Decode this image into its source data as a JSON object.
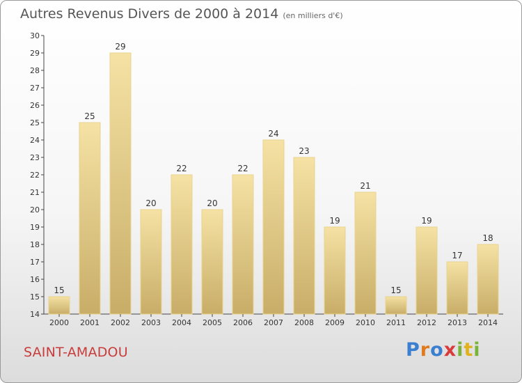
{
  "title": "Autres Revenus Divers de 2000 à 2014",
  "unit": "(en milliers d'€)",
  "place": "SAINT-AMADOU",
  "logo": {
    "p": "P",
    "r": "r",
    "o": "o",
    "x": "x",
    "i": "i",
    "t": "t",
    "i2": "i"
  },
  "colors": {
    "bar_top": "#f5e2a4",
    "bar_bottom": "#c8ad68",
    "bar_border": "#e9d48f",
    "place": "#c83c3c"
  },
  "chart_data": {
    "type": "bar",
    "title": "Autres Revenus Divers de 2000 à 2014",
    "categories": [
      "2000",
      "2001",
      "2002",
      "2003",
      "2004",
      "2005",
      "2006",
      "2007",
      "2008",
      "2009",
      "2010",
      "2011",
      "2012",
      "2013",
      "2014"
    ],
    "values": [
      15,
      25,
      29,
      20,
      22,
      20,
      22,
      24,
      23,
      19,
      21,
      15,
      19,
      17,
      18
    ],
    "ylim": [
      14,
      30
    ],
    "yticks": [
      14,
      15,
      16,
      17,
      18,
      19,
      20,
      21,
      22,
      23,
      24,
      25,
      26,
      27,
      28,
      29,
      30
    ],
    "grid": false,
    "data_labels": true
  }
}
